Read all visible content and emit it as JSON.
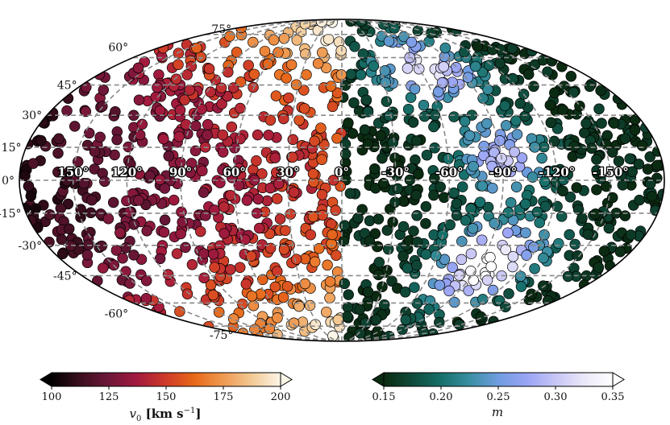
{
  "chart_data": {
    "type": "scatter",
    "projection": "mollweide",
    "title": "",
    "grid": true,
    "longitude_labels": [
      "150°",
      "120°",
      "90°",
      "60°",
      "30°",
      "0°",
      "-30°",
      "-60°",
      "-90°",
      "-120°",
      "-150°"
    ],
    "longitude_values": [
      150,
      120,
      90,
      60,
      30,
      0,
      -30,
      -60,
      -90,
      -120,
      -150
    ],
    "latitude_labels": [
      "75°",
      "60°",
      "45°",
      "30°",
      "15°",
      "0°",
      "-15°",
      "-30°",
      "-45°",
      "-60°",
      "-75°"
    ],
    "latitude_values": [
      75,
      60,
      45,
      30,
      15,
      0,
      -15,
      -30,
      -45,
      -60,
      -75
    ],
    "left_hemisphere": {
      "lon_range": [
        0,
        180
      ],
      "color_variable": "v0",
      "colormap": "warm (black-red-orange-cream)",
      "trend": "v0 increases toward lon 0 and toward high |lat|"
    },
    "right_hemisphere": {
      "lon_range": [
        -180,
        0
      ],
      "color_variable": "m",
      "colormap": "cool (dark green-teal-blue-lavender-white)",
      "trend": "m peaks near lon -90, lat -40 and lon -60, lat +50"
    },
    "colorbars": [
      {
        "name": "v0",
        "label_main": "v",
        "label_sub": "0",
        "label_unit": "[km s",
        "label_exp": "−1",
        "label_close": "]",
        "range": [
          100,
          200
        ],
        "ticks": [
          "100",
          "125",
          "150",
          "175",
          "200"
        ],
        "tick_values": [
          100,
          125,
          150,
          175,
          200
        ],
        "extend": "both",
        "colors": [
          "#000000",
          "#3b0f1f",
          "#6e1739",
          "#a31a3e",
          "#cf3a28",
          "#e86a1a",
          "#ef9a52",
          "#f2c994",
          "#fcf6e8"
        ]
      },
      {
        "name": "m",
        "label_main": "m",
        "range": [
          0.15,
          0.35
        ],
        "ticks": [
          "0.15",
          "0.20",
          "0.25",
          "0.30",
          "0.35"
        ],
        "tick_values": [
          0.15,
          0.2,
          0.25,
          0.3,
          0.35
        ],
        "extend": "both",
        "colors": [
          "#0b2a12",
          "#0f4a3a",
          "#17706a",
          "#3a8fa2",
          "#6f9de0",
          "#9aa4f5",
          "#c6c5f5",
          "#eae8f8",
          "#ffffff"
        ]
      }
    ],
    "n_points_approx": 1400
  }
}
